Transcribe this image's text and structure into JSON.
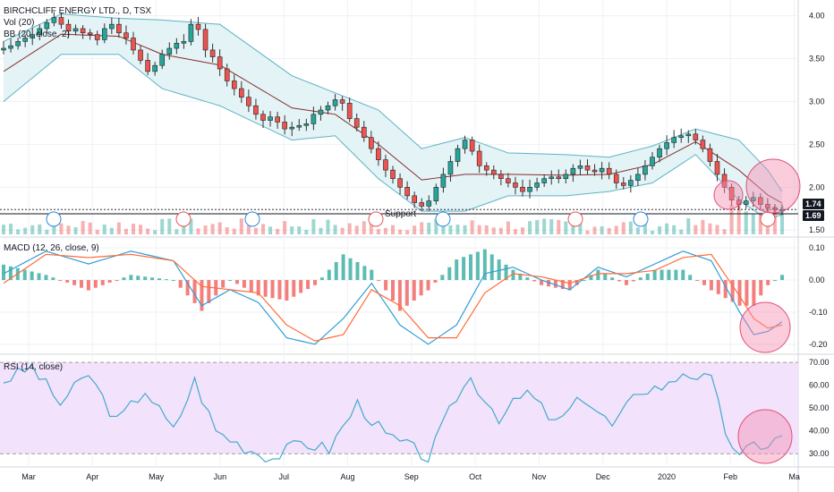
{
  "legend": {
    "main_title": "BIRCHCLIFF ENERGY LTD., D, TSX",
    "vol": "Vol (20)",
    "bb": "BB (20, close, 2)",
    "macd": "MACD (12, 26, close, 9)",
    "rsi": "RSI (14, close)"
  },
  "annotation": {
    "support": "Support"
  },
  "price_tags": {
    "last": "1.74",
    "support": "1.69"
  },
  "colors": {
    "up": "#26a69a",
    "down": "#ef5350",
    "bb_band": "#5fb3c5",
    "bb_basis": "#8b2c2c",
    "bb_fill": "#e3f3f6",
    "macd_line": "#2f9ed6",
    "signal_line": "#ff6d3a",
    "rsi_line": "#44aacc",
    "rsi_fill": "#f3e2fb",
    "circle": "#f48fb1",
    "event_d": "#2b8ad8",
    "event_e": "#e05a5a"
  },
  "chart_data": [
    {
      "type": "candlestick",
      "title": "BIRCHCLIFF ENERGY LTD., D, TSX",
      "x_ticks": [
        "Mar",
        "Apr",
        "May",
        "Jun",
        "Jul",
        "Aug",
        "Sep",
        "Oct",
        "Nov",
        "Dec",
        "2020",
        "Feb",
        "Ma"
      ],
      "y_ticks": [
        "4.00",
        "3.50",
        "3.00",
        "2.50",
        "2.00",
        "1.50"
      ],
      "ylim": [
        1.45,
        4.1
      ],
      "close_series": [
        3.62,
        3.65,
        3.7,
        3.74,
        3.78,
        3.85,
        3.92,
        3.98,
        3.9,
        3.82,
        3.85,
        3.8,
        3.78,
        3.72,
        3.85,
        3.9,
        3.8,
        3.74,
        3.6,
        3.48,
        3.35,
        3.42,
        3.55,
        3.62,
        3.68,
        3.7,
        3.9,
        3.84,
        3.6,
        3.52,
        3.38,
        3.24,
        3.15,
        3.05,
        2.95,
        2.85,
        2.78,
        2.82,
        2.76,
        2.68,
        2.7,
        2.72,
        2.74,
        2.85,
        2.9,
        2.95,
        3.02,
        2.98,
        2.8,
        2.7,
        2.58,
        2.45,
        2.32,
        2.2,
        2.1,
        2.0,
        1.9,
        1.82,
        1.78,
        1.84,
        2.0,
        2.15,
        2.3,
        2.45,
        2.55,
        2.42,
        2.25,
        2.2,
        2.15,
        2.1,
        2.05,
        2.0,
        1.95,
        2.0,
        2.05,
        2.1,
        2.12,
        2.1,
        2.15,
        2.22,
        2.25,
        2.2,
        2.18,
        2.22,
        2.15,
        2.05,
        2.02,
        2.08,
        2.15,
        2.25,
        2.35,
        2.45,
        2.52,
        2.58,
        2.6,
        2.62,
        2.55,
        2.45,
        2.3,
        2.15,
        2.0,
        1.85,
        1.8,
        1.84,
        1.88,
        1.8,
        1.76,
        1.74,
        1.74
      ],
      "bb_upper_points": [
        [
          0,
          3.7
        ],
        [
          8,
          4.02
        ],
        [
          16,
          3.97
        ],
        [
          22,
          3.95
        ],
        [
          30,
          3.9
        ],
        [
          40,
          3.3
        ],
        [
          46,
          3.1
        ],
        [
          52,
          2.9
        ],
        [
          58,
          2.45
        ],
        [
          64,
          2.58
        ],
        [
          70,
          2.4
        ],
        [
          78,
          2.38
        ],
        [
          84,
          2.35
        ],
        [
          90,
          2.48
        ],
        [
          96,
          2.68
        ],
        [
          102,
          2.55
        ],
        [
          106,
          2.2
        ],
        [
          108,
          1.95
        ]
      ],
      "bb_lower_points": [
        [
          0,
          3.0
        ],
        [
          8,
          3.55
        ],
        [
          16,
          3.55
        ],
        [
          22,
          3.15
        ],
        [
          30,
          2.95
        ],
        [
          40,
          2.55
        ],
        [
          46,
          2.6
        ],
        [
          52,
          2.1
        ],
        [
          58,
          1.72
        ],
        [
          64,
          1.72
        ],
        [
          70,
          1.9
        ],
        [
          78,
          1.9
        ],
        [
          84,
          1.95
        ],
        [
          90,
          2.05
        ],
        [
          96,
          2.38
        ],
        [
          102,
          1.85
        ],
        [
          106,
          1.62
        ],
        [
          108,
          1.68
        ]
      ],
      "support_level": 1.69,
      "last_value": 1.74
    },
    {
      "type": "bar",
      "title": "Vol (20)",
      "description_series": "volume"
    },
    {
      "type": "line",
      "title": "MACD (12, 26, close, 9)",
      "y_ticks": [
        "0.10",
        "0.00",
        "-0.10",
        "-0.20"
      ],
      "ylim": [
        -0.22,
        0.12
      ],
      "series": [
        {
          "name": "MACD",
          "points": [
            [
              0,
              0.02
            ],
            [
              6,
              0.09
            ],
            [
              12,
              0.05
            ],
            [
              18,
              0.09
            ],
            [
              24,
              0.06
            ],
            [
              28,
              -0.08
            ],
            [
              32,
              -0.03
            ],
            [
              36,
              -0.07
            ],
            [
              40,
              -0.18
            ],
            [
              44,
              -0.2
            ],
            [
              48,
              -0.12
            ],
            [
              52,
              -0.01
            ],
            [
              56,
              -0.14
            ],
            [
              60,
              -0.2
            ],
            [
              64,
              -0.14
            ],
            [
              68,
              0.02
            ],
            [
              72,
              0.04
            ],
            [
              76,
              0.0
            ],
            [
              80,
              -0.03
            ],
            [
              84,
              0.04
            ],
            [
              88,
              0.01
            ],
            [
              92,
              0.05
            ],
            [
              96,
              0.09
            ],
            [
              100,
              0.06
            ],
            [
              104,
              -0.1
            ],
            [
              106,
              -0.17
            ],
            [
              108,
              -0.16
            ],
            [
              110,
              -0.13
            ]
          ]
        },
        {
          "name": "Signal",
          "points": [
            [
              0,
              -0.01
            ],
            [
              6,
              0.08
            ],
            [
              12,
              0.07
            ],
            [
              18,
              0.08
            ],
            [
              24,
              0.06
            ],
            [
              28,
              -0.02
            ],
            [
              32,
              -0.03
            ],
            [
              36,
              -0.04
            ],
            [
              40,
              -0.14
            ],
            [
              44,
              -0.19
            ],
            [
              48,
              -0.17
            ],
            [
              52,
              -0.03
            ],
            [
              56,
              -0.08
            ],
            [
              60,
              -0.18
            ],
            [
              64,
              -0.18
            ],
            [
              68,
              -0.04
            ],
            [
              72,
              0.02
            ],
            [
              76,
              0.01
            ],
            [
              80,
              -0.01
            ],
            [
              84,
              0.02
            ],
            [
              88,
              0.02
            ],
            [
              92,
              0.03
            ],
            [
              96,
              0.07
            ],
            [
              100,
              0.08
            ],
            [
              104,
              -0.05
            ],
            [
              106,
              -0.12
            ],
            [
              108,
              -0.15
            ],
            [
              110,
              -0.14
            ]
          ]
        }
      ]
    },
    {
      "type": "line",
      "title": "RSI (14, close)",
      "y_ticks": [
        "70.00",
        "60.00",
        "50.00",
        "40.00",
        "30.00"
      ],
      "ylim": [
        25,
        72
      ],
      "bands": [
        30,
        70
      ],
      "series": [
        {
          "name": "RSI",
          "points": [
            [
              0,
              62
            ],
            [
              4,
              68
            ],
            [
              8,
              52
            ],
            [
              12,
              65
            ],
            [
              16,
              44
            ],
            [
              20,
              58
            ],
            [
              24,
              40
            ],
            [
              27,
              62
            ],
            [
              30,
              40
            ],
            [
              34,
              33
            ],
            [
              38,
              28
            ],
            [
              42,
              35
            ],
            [
              46,
              32
            ],
            [
              50,
              52
            ],
            [
              54,
              38
            ],
            [
              58,
              32
            ],
            [
              60,
              28
            ],
            [
              64,
              55
            ],
            [
              66,
              63
            ],
            [
              70,
              46
            ],
            [
              74,
              57
            ],
            [
              78,
              43
            ],
            [
              82,
              55
            ],
            [
              86,
              42
            ],
            [
              90,
              58
            ],
            [
              94,
              60
            ],
            [
              96,
              66
            ],
            [
              100,
              62
            ],
            [
              102,
              40
            ],
            [
              104,
              28
            ],
            [
              106,
              34
            ],
            [
              108,
              34
            ],
            [
              110,
              38
            ]
          ]
        }
      ]
    }
  ]
}
